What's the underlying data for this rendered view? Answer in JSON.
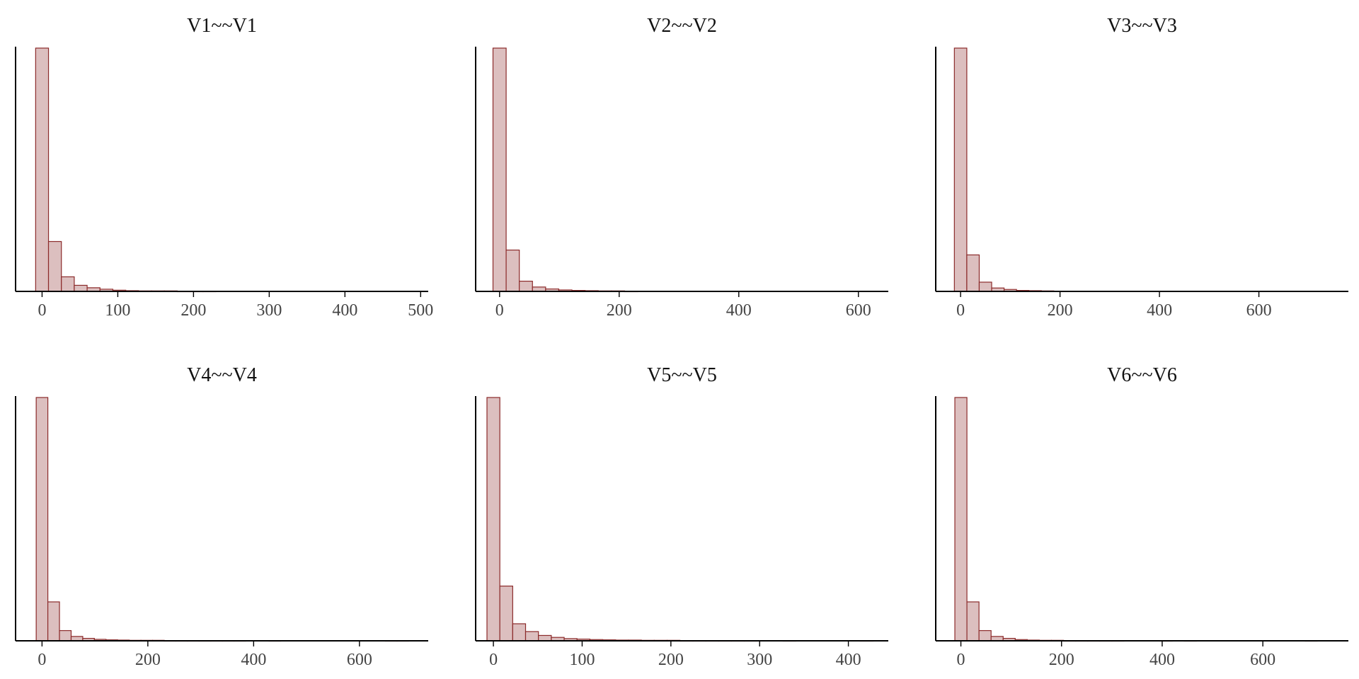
{
  "chart_data": [
    {
      "type": "histogram",
      "title": "V1~~V1",
      "xlim": [
        -35,
        510
      ],
      "xticks": [
        0,
        100,
        200,
        300,
        400,
        500
      ],
      "bin_width": 17,
      "bins_start": -8.5,
      "counts": [
        1000,
        205,
        60,
        25,
        15,
        9,
        5,
        3,
        2,
        2,
        2,
        1,
        1,
        1
      ]
    },
    {
      "type": "histogram",
      "title": "V2~~V2",
      "xlim": [
        -40,
        650
      ],
      "xticks": [
        0,
        200,
        400,
        600
      ],
      "bin_width": 22,
      "bins_start": -11,
      "counts": [
        1000,
        170,
        42,
        18,
        10,
        6,
        4,
        3,
        2,
        2,
        1
      ]
    },
    {
      "type": "histogram",
      "title": "V3~~V3",
      "xlim": [
        -50,
        780
      ],
      "xticks": [
        0,
        200,
        400,
        600
      ],
      "bin_width": 25,
      "bins_start": -12.5,
      "counts": [
        1000,
        150,
        38,
        14,
        8,
        4,
        3,
        2
      ]
    },
    {
      "type": "histogram",
      "title": "V4~~V4",
      "xlim": [
        -50,
        730
      ],
      "xticks": [
        0,
        200,
        400,
        600
      ],
      "bin_width": 22,
      "bins_start": -11,
      "counts": [
        1000,
        160,
        42,
        18,
        10,
        6,
        4,
        3,
        2,
        2,
        2,
        1,
        1,
        1,
        1,
        1,
        1,
        1,
        0,
        0,
        1,
        0,
        0,
        0,
        0,
        0,
        0,
        0,
        0,
        0,
        1,
        1
      ]
    },
    {
      "type": "histogram",
      "title": "V5~~V5",
      "xlim": [
        -20,
        445
      ],
      "xticks": [
        0,
        100,
        200,
        300,
        400
      ],
      "bin_width": 14.5,
      "bins_start": -7.25,
      "counts": [
        1000,
        225,
        70,
        38,
        22,
        14,
        9,
        7,
        5,
        4,
        3,
        3,
        2,
        2,
        2,
        1,
        1,
        1,
        1,
        1,
        1,
        0,
        0,
        1,
        0,
        0,
        0,
        0,
        0,
        1
      ]
    },
    {
      "type": "histogram",
      "title": "V6~~V6",
      "xlim": [
        -50,
        770
      ],
      "xticks": [
        0,
        200,
        400,
        600
      ],
      "bin_width": 24,
      "bins_start": -12,
      "counts": [
        1000,
        160,
        42,
        18,
        10,
        5,
        3,
        2,
        2,
        1,
        1,
        1,
        1,
        1,
        0,
        0,
        0,
        1,
        0,
        1,
        0,
        0,
        0,
        0,
        0,
        0,
        0,
        0,
        0,
        1
      ]
    }
  ],
  "colors": {
    "bar_fill": "#dcbfbf",
    "bar_stroke": "#8b2a2a",
    "axis": "#000000",
    "tick_label": "#444444"
  }
}
